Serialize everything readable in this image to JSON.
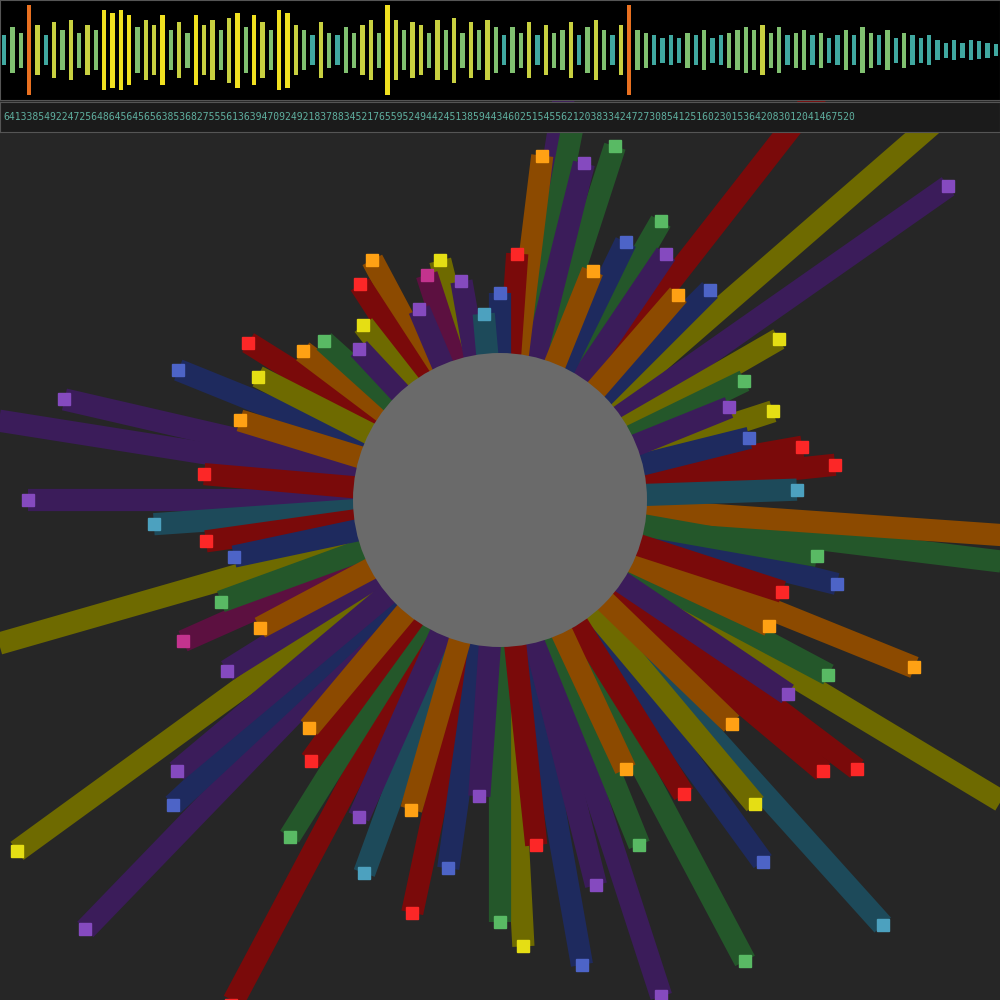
{
  "chart_data": [
    {
      "type": "bar",
      "annotations": [
        "6413385492247256486456456563853682755561363947092492183788345217655952494424513859443460251545562120383342472730854125160230153642083012041467520"
      ],
      "values": [
        0.3,
        0.45,
        0.35,
        0.9,
        0.5,
        0.3,
        0.55,
        0.4,
        0.6,
        0.35,
        0.5,
        0.4,
        0.8,
        0.75,
        0.8,
        0.7,
        0.45,
        0.6,
        0.5,
        0.7,
        0.4,
        0.55,
        0.35,
        0.7,
        0.5,
        0.6,
        0.4,
        0.65,
        0.75,
        0.45,
        0.7,
        0.55,
        0.4,
        0.8,
        0.75,
        0.5,
        0.4,
        0.3,
        0.55,
        0.35,
        0.3,
        0.45,
        0.35,
        0.5,
        0.6,
        0.35,
        0.9,
        0.6,
        0.4,
        0.55,
        0.5,
        0.35,
        0.6,
        0.4,
        0.65,
        0.35,
        0.55,
        0.4,
        0.6,
        0.45,
        0.3,
        0.45,
        0.35,
        0.55,
        0.3,
        0.5,
        0.35,
        0.4,
        0.55,
        0.3,
        0.45,
        0.6,
        0.4,
        0.3,
        0.5,
        0.9,
        0.4,
        0.35,
        0.3,
        0.25,
        0.3,
        0.25,
        0.35,
        0.3,
        0.4,
        0.25,
        0.3,
        0.35,
        0.4,
        0.45,
        0.4,
        0.5,
        0.35,
        0.45,
        0.3,
        0.35,
        0.4,
        0.3,
        0.35,
        0.25,
        0.3,
        0.4,
        0.3,
        0.45,
        0.35,
        0.3,
        0.4,
        0.25,
        0.35,
        0.3,
        0.25,
        0.3,
        0.2,
        0.15,
        0.2,
        0.15,
        0.2,
        0.18,
        0.15,
        0.12
      ],
      "colors": [
        "#40a8a0",
        "#80c070",
        "#80c070",
        "#e87020",
        "#c8d040",
        "#40a8a0",
        "#c8d040",
        "#80c070",
        "#c8d040",
        "#80c070",
        "#c8d040",
        "#80c070",
        "#f0e020",
        "#f0e020",
        "#f0e020",
        "#f0e020",
        "#80c070",
        "#c8d040",
        "#c8d040",
        "#f0e020",
        "#80c070",
        "#c8d040",
        "#80c070",
        "#f0e020",
        "#c8d040",
        "#c8d040",
        "#80c070",
        "#c8d040",
        "#f0e020",
        "#80c070",
        "#f0e020",
        "#c8d040",
        "#80c070",
        "#f0e020",
        "#f0e020",
        "#c8d040",
        "#80c070",
        "#40a8a0",
        "#c8d040",
        "#80c070",
        "#40a8a0",
        "#80c070",
        "#80c070",
        "#c8d040",
        "#c8d040",
        "#80c070",
        "#f0e020",
        "#c8d040",
        "#80c070",
        "#c8d040",
        "#c8d040",
        "#80c070",
        "#c8d040",
        "#80c070",
        "#c8d040",
        "#80c070",
        "#c8d040",
        "#80c070",
        "#c8d040",
        "#80c070",
        "#40a8a0",
        "#80c070",
        "#80c070",
        "#c8d040",
        "#40a8a0",
        "#c8d040",
        "#80c070",
        "#80c070",
        "#c8d040",
        "#40a8a0",
        "#80c070",
        "#c8d040",
        "#80c070",
        "#40a8a0",
        "#c8d040",
        "#e87020",
        "#80c070",
        "#80c070",
        "#40a8a0",
        "#40a8a0",
        "#40a8a0",
        "#40a8a0",
        "#80c070",
        "#40a8a0",
        "#80c070",
        "#40a8a0",
        "#40a8a0",
        "#80c070",
        "#80c070",
        "#80c070",
        "#80c070",
        "#c8d040",
        "#80c070",
        "#80c070",
        "#40a8a0",
        "#80c070",
        "#80c070",
        "#40a8a0",
        "#80c070",
        "#40a8a0",
        "#40a8a0",
        "#80c070",
        "#40a8a0",
        "#80c070",
        "#80c070",
        "#40a8a0",
        "#80c070",
        "#40a8a0",
        "#80c070",
        "#40a8a0",
        "#40a8a0",
        "#40a8a0",
        "#40a8a0",
        "#40a8a0",
        "#40a8a0",
        "#40a8a0",
        "#40a8a0",
        "#40a8a0",
        "#40a8a0",
        "#40a8a0"
      ],
      "xlim": [
        -0.5,
        119.5
      ],
      "ylim": [
        -1,
        1
      ],
      "tick_labels": false
    },
    {
      "type": "radial_bar",
      "angles": [
        2,
        6,
        10,
        14,
        18,
        22,
        26,
        30,
        35,
        41,
        45,
        49,
        52,
        56,
        60,
        64,
        68,
        72,
        76,
        79,
        81,
        83,
        86,
        90,
        95,
        100,
        104,
        108,
        113,
        118,
        123,
        128,
        133,
        138,
        143,
        148,
        153,
        158,
        163,
        167,
        171,
        175,
        180,
        184,
        188,
        192,
        196,
        200,
        204,
        208,
        212,
        216,
        220,
        223,
        226,
        230,
        234,
        238,
        242,
        246,
        250,
        254,
        258,
        262,
        266,
        270,
        273,
        276,
        280,
        284,
        288,
        292,
        295,
        298,
        302,
        306,
        310,
        312,
        316,
        320,
        323,
        326,
        329,
        332,
        335,
        338,
        342,
        346,
        350,
        353,
        356
      ],
      "values": [
        0.3,
        0.38,
        0.32,
        0.22,
        0.28,
        0.2,
        0.25,
        0.35,
        0.8,
        0.85,
        0.3,
        0.25,
        0.8,
        0.3,
        0.35,
        0.28,
        0.2,
        0.45,
        0.4,
        0.5,
        1.0,
        0.4,
        0.2,
        0.12,
        0.08,
        0.15,
        0.2,
        0.18,
        0.12,
        0.25,
        0.22,
        0.15,
        0.12,
        0.18,
        0.2,
        0.3,
        0.25,
        0.4,
        0.25,
        0.6,
        0.75,
        0.3,
        0.65,
        0.4,
        0.3,
        0.25,
        0.9,
        0.3,
        0.4,
        0.25,
        0.35,
        0.9,
        0.55,
        0.6,
        0.9,
        0.3,
        0.35,
        0.5,
        0.85,
        0.4,
        0.5,
        0.35,
        0.55,
        0.45,
        0.3,
        0.55,
        0.6,
        0.4,
        0.65,
        0.5,
        0.75,
        0.45,
        0.3,
        0.75,
        0.4,
        0.6,
        0.5,
        0.85,
        0.35,
        0.55,
        0.6,
        0.4,
        0.9,
        0.45,
        0.3,
        0.6,
        0.3,
        0.4,
        0.35,
        0.75,
        0.75
      ],
      "colors": [
        "#1d4a5a",
        "#7a0a0a",
        "#7a0a0a",
        "#1e2a5e",
        "#6e6a00",
        "#3b1c5a",
        "#24572a",
        "#6e6a00",
        "#3b1c5a",
        "#6e6a00",
        "#1e2a5e",
        "#8c4a00",
        "#7a0a0a",
        "#3b1c5a",
        "#24572a",
        "#1e2a5e",
        "#8c4a00",
        "#24572a",
        "#3b1c5a",
        "#24572a",
        "#3b1c5a",
        "#8c4a00",
        "#7a0a0a",
        "#1e2a5e",
        "#1d4a5a",
        "#3b1c5a",
        "#6e6a00",
        "#5c1040",
        "#3b1c5a",
        "#8c4a00",
        "#7a0a0a",
        "#6e6a00",
        "#3b1c5a",
        "#24572a",
        "#8c4a00",
        "#7a0a0a",
        "#6e6a00",
        "#1e2a5e",
        "#8c4a00",
        "#3b1c5a",
        "#3b1c5a",
        "#7a0a0a",
        "#3b1c5a",
        "#1d4a5a",
        "#7a0a0a",
        "#1e2a5e",
        "#6e6a00",
        "#24572a",
        "#5c1040",
        "#8c4a00",
        "#3b1c5a",
        "#6e6a00",
        "#3b1c5a",
        "#1e2a5e",
        "#3b1c5a",
        "#8c4a00",
        "#7a0a0a",
        "#24572a",
        "#7a0a0a",
        "#3b1c5a",
        "#1d4a5a",
        "#8c4a00",
        "#7a0a0a",
        "#1e2a5e",
        "#3b1c5a",
        "#24572a",
        "#6e6a00",
        "#7a0a0a",
        "#1e2a5e",
        "#3b1c5a",
        "#3b1c5a",
        "#24572a",
        "#8c4a00",
        "#24572a",
        "#7a0a0a",
        "#1e2a5e",
        "#6e6a00",
        "#1d4a5a",
        "#8c4a00",
        "#7a0a0a",
        "#7a0a0a",
        "#3b1c5a",
        "#6e6a00",
        "#24572a",
        "#8c4a00",
        "#8c4a00",
        "#7a0a0a",
        "#1e2a5e",
        "#24572a",
        "#24572a",
        "#8c4a00"
      ],
      "xlim": [
        -1,
        1
      ],
      "ylim": [
        -1,
        1
      ],
      "tick_labels": false
    }
  ]
}
